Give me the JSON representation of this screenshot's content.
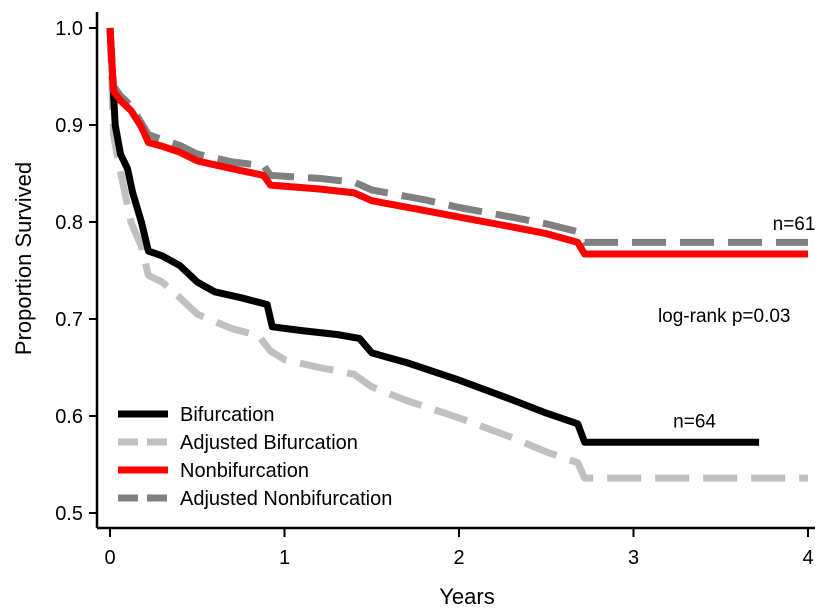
{
  "chart_data": {
    "type": "line",
    "title": "",
    "xlabel": "Years",
    "ylabel": "Proportion Survived",
    "xlim": [
      0,
      4
    ],
    "ylim": [
      0.5,
      1.0
    ],
    "x_ticks": [
      "0",
      "1",
      "2",
      "3",
      "4"
    ],
    "y_ticks": [
      "0.5",
      "0.6",
      "0.7",
      "0.8",
      "0.9",
      "1.0"
    ],
    "grid": false,
    "legend_position": "bottom-left",
    "series": [
      {
        "name": "Bifurcation",
        "color": "#000000",
        "dash": "solid",
        "points": [
          [
            0,
            1.0
          ],
          [
            0.03,
            0.9
          ],
          [
            0.06,
            0.87
          ],
          [
            0.1,
            0.855
          ],
          [
            0.13,
            0.83
          ],
          [
            0.18,
            0.8
          ],
          [
            0.22,
            0.77
          ],
          [
            0.3,
            0.765
          ],
          [
            0.4,
            0.755
          ],
          [
            0.5,
            0.738
          ],
          [
            0.6,
            0.728
          ],
          [
            0.75,
            0.722
          ],
          [
            0.9,
            0.715
          ],
          [
            0.93,
            0.692
          ],
          [
            1.1,
            0.688
          ],
          [
            1.3,
            0.684
          ],
          [
            1.43,
            0.68
          ],
          [
            1.5,
            0.665
          ],
          [
            1.7,
            0.655
          ],
          [
            2.0,
            0.637
          ],
          [
            2.3,
            0.617
          ],
          [
            2.5,
            0.603
          ],
          [
            2.68,
            0.592
          ],
          [
            2.72,
            0.573
          ],
          [
            3.0,
            0.573
          ],
          [
            3.72,
            0.573
          ]
        ]
      },
      {
        "name": "Adjusted Bifurcation",
        "color": "#c0c0c0",
        "dash": "dashed",
        "points": [
          [
            0,
            1.0
          ],
          [
            0.02,
            0.89
          ],
          [
            0.05,
            0.86
          ],
          [
            0.08,
            0.835
          ],
          [
            0.12,
            0.8
          ],
          [
            0.18,
            0.775
          ],
          [
            0.22,
            0.745
          ],
          [
            0.3,
            0.738
          ],
          [
            0.4,
            0.722
          ],
          [
            0.5,
            0.705
          ],
          [
            0.7,
            0.69
          ],
          [
            0.85,
            0.683
          ],
          [
            0.92,
            0.667
          ],
          [
            1.0,
            0.658
          ],
          [
            1.2,
            0.65
          ],
          [
            1.4,
            0.643
          ],
          [
            1.5,
            0.63
          ],
          [
            1.7,
            0.616
          ],
          [
            2.0,
            0.598
          ],
          [
            2.3,
            0.578
          ],
          [
            2.5,
            0.563
          ],
          [
            2.68,
            0.552
          ],
          [
            2.72,
            0.536
          ],
          [
            3.0,
            0.536
          ],
          [
            4.0,
            0.536
          ]
        ]
      },
      {
        "name": "Nonbifurcation",
        "color": "#ff0000",
        "dash": "solid",
        "points": [
          [
            0,
            1.0
          ],
          [
            0.02,
            0.935
          ],
          [
            0.06,
            0.925
          ],
          [
            0.12,
            0.915
          ],
          [
            0.18,
            0.898
          ],
          [
            0.22,
            0.882
          ],
          [
            0.3,
            0.878
          ],
          [
            0.4,
            0.872
          ],
          [
            0.5,
            0.863
          ],
          [
            0.7,
            0.855
          ],
          [
            0.88,
            0.848
          ],
          [
            0.92,
            0.838
          ],
          [
            1.2,
            0.834
          ],
          [
            1.4,
            0.83
          ],
          [
            1.5,
            0.822
          ],
          [
            1.8,
            0.812
          ],
          [
            2.0,
            0.805
          ],
          [
            2.3,
            0.795
          ],
          [
            2.5,
            0.788
          ],
          [
            2.68,
            0.779
          ],
          [
            2.72,
            0.767
          ],
          [
            3.0,
            0.767
          ],
          [
            4.0,
            0.767
          ]
        ]
      },
      {
        "name": "Adjusted Nonbifurcation",
        "color": "#808080",
        "dash": "dashed",
        "points": [
          [
            0,
            1.0
          ],
          [
            0.02,
            0.94
          ],
          [
            0.06,
            0.93
          ],
          [
            0.12,
            0.92
          ],
          [
            0.18,
            0.902
          ],
          [
            0.22,
            0.89
          ],
          [
            0.3,
            0.885
          ],
          [
            0.4,
            0.879
          ],
          [
            0.5,
            0.87
          ],
          [
            0.7,
            0.862
          ],
          [
            0.88,
            0.858
          ],
          [
            0.92,
            0.848
          ],
          [
            1.2,
            0.845
          ],
          [
            1.4,
            0.841
          ],
          [
            1.5,
            0.833
          ],
          [
            1.8,
            0.823
          ],
          [
            2.0,
            0.815
          ],
          [
            2.3,
            0.805
          ],
          [
            2.5,
            0.798
          ],
          [
            2.68,
            0.79
          ],
          [
            2.72,
            0.779
          ],
          [
            3.0,
            0.779
          ],
          [
            4.0,
            0.779
          ]
        ]
      }
    ],
    "annotations": [
      {
        "text": "n=61",
        "x": 3.92,
        "y": 0.792
      },
      {
        "text": "log-rank p=0.03",
        "x": 3.52,
        "y": 0.697
      },
      {
        "text": "n=64",
        "x": 3.35,
        "y": 0.588
      }
    ]
  }
}
